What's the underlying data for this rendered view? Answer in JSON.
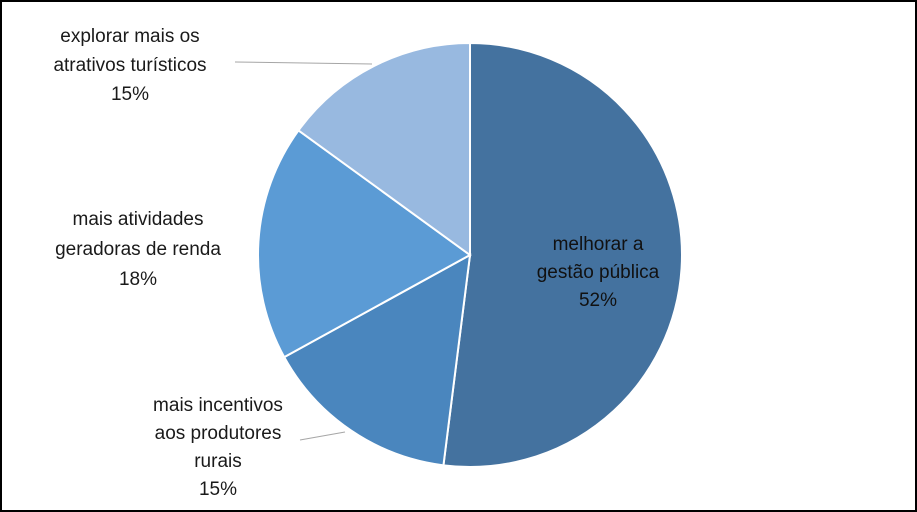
{
  "chart_data": {
    "type": "pie",
    "title": "",
    "slices": [
      {
        "label_lines": [
          "melhorar a",
          "gestão pública"
        ],
        "percent_label": "52%",
        "value": 52,
        "color": "#44729F"
      },
      {
        "label_lines": [
          "mais incentivos",
          "aos produtores",
          "rurais"
        ],
        "percent_label": "15%",
        "value": 15,
        "color": "#4A86BE"
      },
      {
        "label_lines": [
          "mais atividades",
          "geradoras de renda"
        ],
        "percent_label": "18%",
        "value": 18,
        "color": "#5B9BD5"
      },
      {
        "label_lines": [
          "explorar mais os",
          "atrativos turísticos"
        ],
        "percent_label": "15%",
        "value": 15,
        "color": "#98B9E0"
      }
    ],
    "start_angle_deg": 0,
    "direction": "clockwise",
    "legend": "none",
    "label_position": [
      "inside",
      "outside",
      "outside",
      "outside"
    ]
  }
}
